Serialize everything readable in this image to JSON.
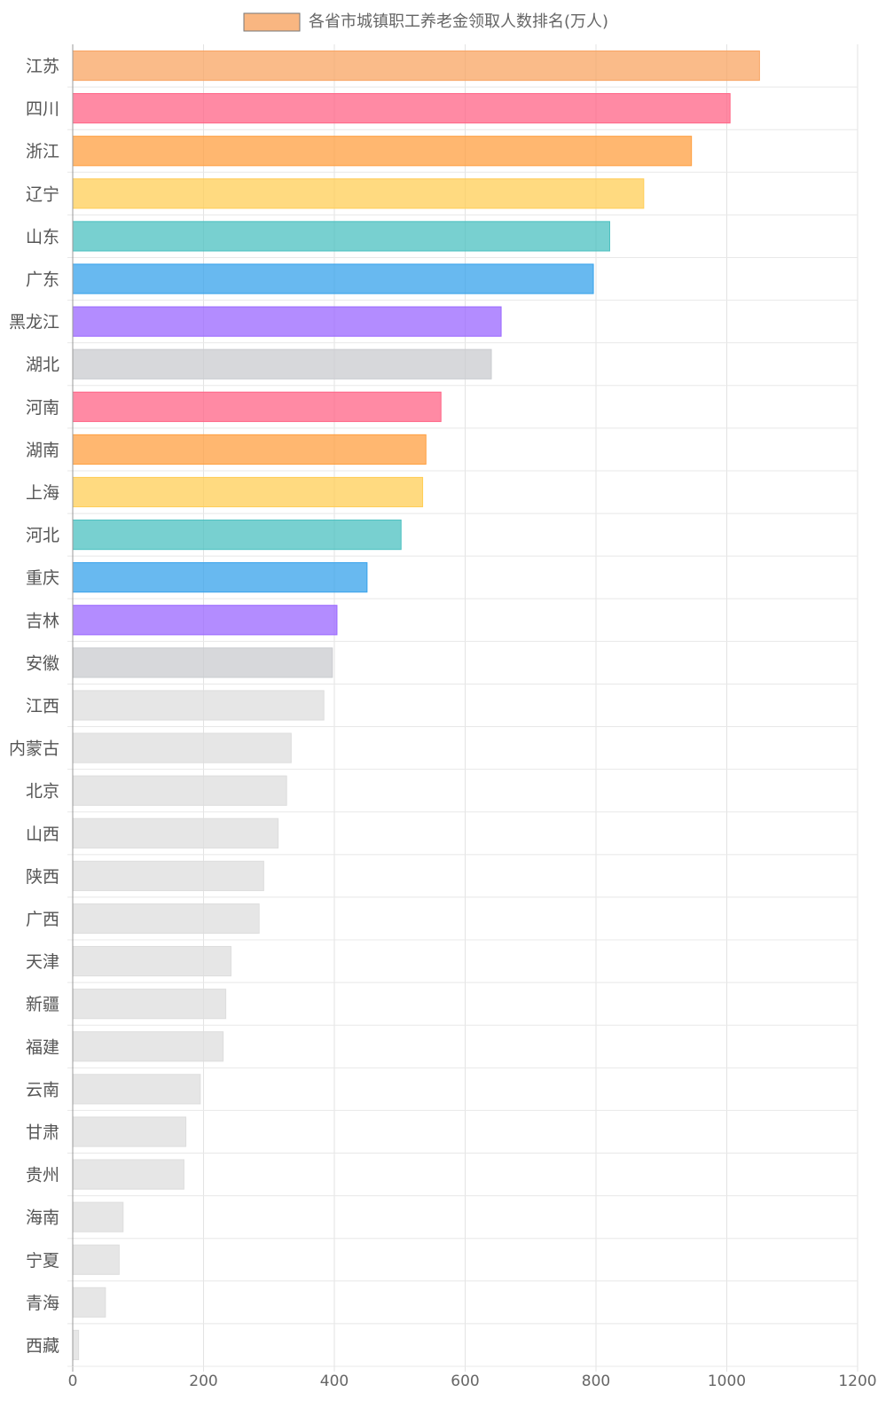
{
  "chart_data": {
    "type": "bar",
    "orientation": "horizontal",
    "title": "",
    "legend": {
      "label": "各省市城镇职工养老金领取人数排名(万人)",
      "placement": "top-center"
    },
    "xlabel": "",
    "ylabel": "",
    "xlim": [
      0,
      1200
    ],
    "x_ticks": [
      "0",
      "200",
      "400",
      "600",
      "800",
      "1000",
      "1200"
    ],
    "grid": true,
    "categories": [
      "江苏",
      "四川",
      "浙江",
      "辽宁",
      "山东",
      "广东",
      "黑龙江",
      "湖北",
      "河南",
      "湖南",
      "上海",
      "河北",
      "重庆",
      "吉林",
      "安徽",
      "江西",
      "内蒙古",
      "北京",
      "山西",
      "陕西",
      "广西",
      "天津",
      "新疆",
      "福建",
      "云南",
      "甘肃",
      "贵州",
      "海南",
      "宁夏",
      "青海",
      "西藏"
    ],
    "values": [
      1050,
      1005,
      946,
      873,
      821,
      796,
      655,
      640,
      563,
      540,
      535,
      502,
      450,
      404,
      397,
      384,
      334,
      327,
      314,
      292,
      285,
      242,
      234,
      230,
      195,
      173,
      170,
      77,
      71,
      50,
      9
    ],
    "colors": {
      "orange": "#f8a462",
      "pink": "#ff6385",
      "amber": "#ff9f40",
      "yellow": "#ffcd56",
      "teal": "#4bc0c0",
      "blue": "#36a2eb",
      "purple": "#9966ff",
      "gray": "#c9cbcf",
      "lightgray": "#dddddd"
    },
    "bar_colors": [
      "orange",
      "pink",
      "amber",
      "yellow",
      "teal",
      "blue",
      "purple",
      "gray",
      "pink",
      "amber",
      "yellow",
      "teal",
      "blue",
      "purple",
      "gray",
      "lightgray",
      "lightgray",
      "lightgray",
      "lightgray",
      "lightgray",
      "lightgray",
      "lightgray",
      "lightgray",
      "lightgray",
      "lightgray",
      "lightgray",
      "lightgray",
      "lightgray",
      "lightgray",
      "lightgray",
      "lightgray"
    ]
  }
}
